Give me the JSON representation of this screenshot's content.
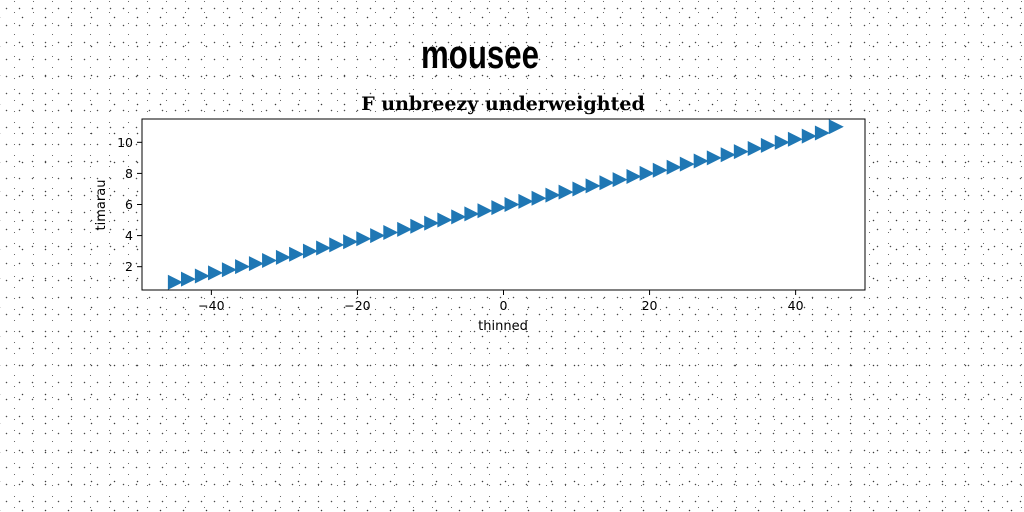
{
  "suptitle": "mousee",
  "chart_data": {
    "type": "scatter",
    "title": "F unbreezy underweighted",
    "xlabel": "thinned",
    "ylabel": "timarau",
    "xlim": [
      -49.5,
      49.5
    ],
    "ylim": [
      0.5,
      11.5
    ],
    "xticks": [
      -40,
      -20,
      0,
      20,
      40
    ],
    "xtick_labels": [
      "−40",
      "−20",
      "0",
      "20",
      "40"
    ],
    "yticks": [
      2,
      4,
      6,
      8,
      10
    ],
    "ytick_labels": [
      "2",
      "4",
      "6",
      "8",
      "10"
    ],
    "marker": "triangle-right",
    "grid": false,
    "series": [
      {
        "color": "#1f77b4",
        "x": [
          -45,
          -43.2,
          -41.3,
          -39.5,
          -37.6,
          -35.8,
          -33.9,
          -32.1,
          -30.2,
          -28.4,
          -26.5,
          -24.7,
          -22.9,
          -21,
          -19.2,
          -17.3,
          -15.5,
          -13.6,
          -11.8,
          -9.9,
          -8.1,
          -6.2,
          -4.4,
          -2.6,
          -0.7,
          1.1,
          3,
          4.8,
          6.7,
          8.5,
          10.4,
          12.2,
          14.1,
          15.9,
          17.8,
          19.6,
          21.4,
          23.3,
          25.1,
          27,
          28.8,
          30.7,
          32.5,
          34.4,
          36.2,
          38.1,
          39.9,
          41.8,
          43.6,
          45.5
        ],
        "y": [
          1,
          1.2,
          1.4,
          1.6,
          1.8,
          2,
          2.2,
          2.4,
          2.6,
          2.8,
          3,
          3.2,
          3.4,
          3.6,
          3.8,
          4,
          4.2,
          4.4,
          4.6,
          4.8,
          5,
          5.2,
          5.4,
          5.6,
          5.8,
          6,
          6.2,
          6.4,
          6.6,
          6.8,
          7,
          7.2,
          7.4,
          7.6,
          7.8,
          8,
          8.2,
          8.4,
          8.6,
          8.8,
          9,
          9.2,
          9.4,
          9.6,
          9.8,
          10,
          10.2,
          10.4,
          10.6,
          11
        ]
      }
    ]
  }
}
